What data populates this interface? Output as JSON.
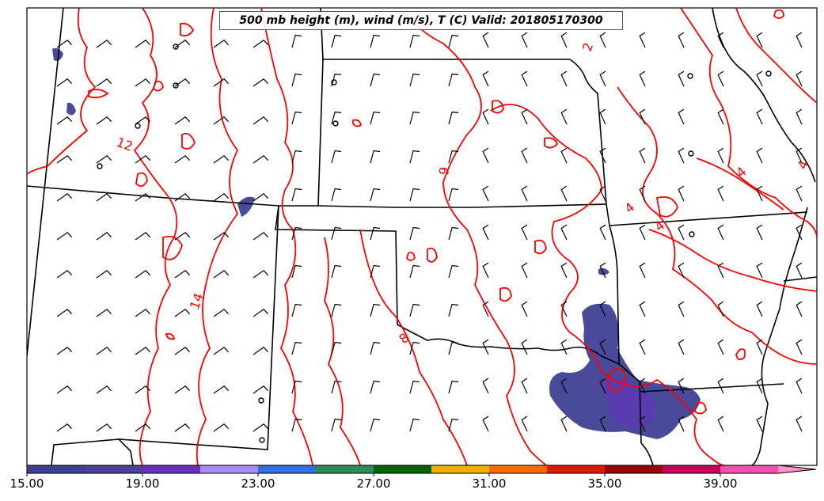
{
  "title": "500 mb height (m), wind (m/s), T (C) Valid: 201805170300",
  "contour_labels": [
    "12",
    "14",
    "2",
    "6",
    "4",
    "4",
    "4",
    "4",
    "8"
  ],
  "colorbar": {
    "ticks": [
      "15.00",
      "19.00",
      "23.00",
      "27.00",
      "31.00",
      "35.00",
      "39.00"
    ],
    "colors": [
      "#3f3f8f",
      "#4c3f9a",
      "#6a2fc2",
      "#a98cf5",
      "#2f6fe0",
      "#2e8b57",
      "#006400",
      "#f0b000",
      "#ff6a00",
      "#e01800",
      "#9a0000",
      "#c8005a",
      "#f050b0",
      "#ff90c8"
    ]
  },
  "colors": {
    "temperature_contour": "#ff0000",
    "state_border": "#000000",
    "precip_shade": "#4a4a9a"
  }
}
